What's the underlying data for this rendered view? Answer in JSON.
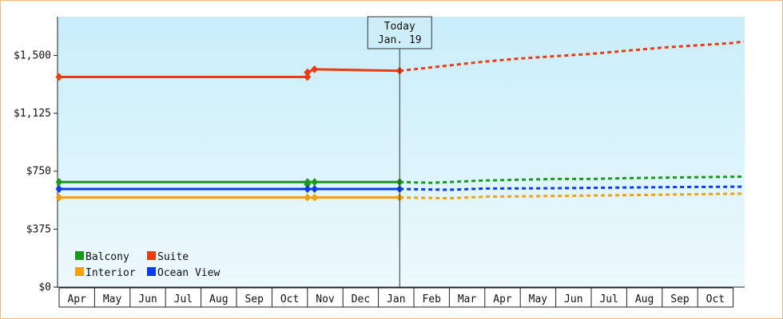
{
  "chart_data": {
    "type": "line",
    "y_axis": {
      "min": 0,
      "max": 1750,
      "ticks": [
        0,
        375,
        750,
        1125,
        1500
      ],
      "tick_labels": [
        "$0",
        "$375",
        "$750",
        "$1,125",
        "$1,500"
      ]
    },
    "x_axis": {
      "months": [
        "Apr",
        "May",
        "Jun",
        "Jul",
        "Aug",
        "Sep",
        "Oct",
        "Nov",
        "Dec",
        "Jan",
        "Feb",
        "Mar",
        "Apr",
        "May",
        "Jun",
        "Jul",
        "Aug",
        "Sep",
        "Oct"
      ]
    },
    "today": {
      "line1": "Today",
      "line2": "Jan. 19",
      "x": 9.6
    },
    "grid": false,
    "legend": {
      "placement": "bottom-left",
      "items": [
        {
          "name": "Balcony",
          "color": "#1a9a1a"
        },
        {
          "name": "Suite",
          "color": "#ee3a10"
        },
        {
          "name": "Interior",
          "color": "#f5a00a"
        },
        {
          "name": "Ocean View",
          "color": "#0c3cf0"
        }
      ]
    },
    "series": [
      {
        "name": "Suite",
        "color": "#ee3a10",
        "historical": [
          [
            0,
            1360
          ],
          [
            7.0,
            1360
          ],
          [
            7.0,
            1390
          ],
          [
            7.2,
            1410
          ],
          [
            9.6,
            1400
          ]
        ],
        "markers": [
          [
            0,
            1360
          ],
          [
            7.0,
            1360
          ],
          [
            7.0,
            1390
          ],
          [
            7.2,
            1410
          ],
          [
            9.6,
            1400
          ]
        ],
        "forecast": [
          [
            9.6,
            1400
          ],
          [
            12.0,
            1460
          ],
          [
            13.0,
            1480
          ],
          [
            15.0,
            1510
          ],
          [
            17.0,
            1550
          ],
          [
            19.0,
            1580
          ],
          [
            19.3,
            1590
          ]
        ]
      },
      {
        "name": "Balcony",
        "color": "#1a9a1a",
        "historical": [
          [
            0,
            680
          ],
          [
            9.6,
            680
          ]
        ],
        "markers": [
          [
            0,
            680
          ],
          [
            7.0,
            680
          ],
          [
            7.0,
            665
          ],
          [
            7.2,
            680
          ],
          [
            9.6,
            680
          ]
        ],
        "forecast": [
          [
            9.6,
            680
          ],
          [
            10.5,
            675
          ],
          [
            12.0,
            690
          ],
          [
            14.0,
            700
          ],
          [
            15.0,
            700
          ],
          [
            16.0,
            705
          ],
          [
            17.5,
            710
          ],
          [
            19.3,
            715
          ]
        ]
      },
      {
        "name": "Ocean View",
        "color": "#0c3cf0",
        "historical": [
          [
            0,
            635
          ],
          [
            9.6,
            635
          ]
        ],
        "markers": [
          [
            0,
            635
          ],
          [
            7.0,
            635
          ],
          [
            7.2,
            635
          ],
          [
            9.6,
            635
          ]
        ],
        "forecast": [
          [
            9.6,
            635
          ],
          [
            11.0,
            630
          ],
          [
            12.0,
            638
          ],
          [
            14.0,
            640
          ],
          [
            16.0,
            645
          ],
          [
            17.5,
            648
          ],
          [
            19.3,
            650
          ]
        ]
      },
      {
        "name": "Interior",
        "color": "#f5a00a",
        "historical": [
          [
            0,
            580
          ],
          [
            9.6,
            580
          ]
        ],
        "markers": [
          [
            0,
            580
          ],
          [
            7.0,
            580
          ],
          [
            7.2,
            580
          ],
          [
            9.6,
            580
          ]
        ],
        "forecast": [
          [
            9.6,
            580
          ],
          [
            11.0,
            575
          ],
          [
            12.0,
            585
          ],
          [
            14.0,
            590
          ],
          [
            16.0,
            595
          ],
          [
            17.5,
            600
          ],
          [
            19.3,
            605
          ]
        ]
      }
    ]
  }
}
